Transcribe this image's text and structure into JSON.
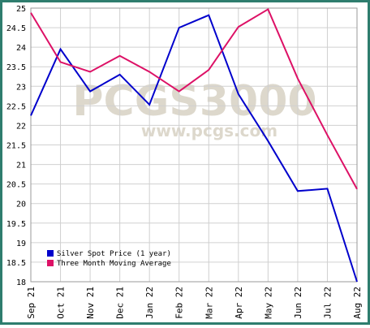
{
  "chart_data": {
    "type": "line",
    "watermark": "PCGS3000",
    "watermark_url": "www.pcgs.com",
    "categories": [
      "Sep 21",
      "Oct 21",
      "Nov 21",
      "Dec 21",
      "Jan 22",
      "Feb 22",
      "Mar 22",
      "Apr 22",
      "May 22",
      "Jun 22",
      "Jul 22",
      "Aug 22"
    ],
    "series": [
      {
        "name": "Silver Spot Price (1 year)",
        "color": "#0000cc",
        "values": [
          22.25,
          23.95,
          22.87,
          23.3,
          22.53,
          24.5,
          24.82,
          22.8,
          21.6,
          20.32,
          20.38,
          18.0
        ]
      },
      {
        "name": "Three Month Moving Average",
        "color": "#dd1166",
        "values": [
          24.88,
          23.62,
          23.37,
          23.78,
          23.37,
          22.87,
          23.42,
          24.52,
          24.97,
          23.2,
          21.75,
          20.37
        ]
      }
    ],
    "ylim": [
      18,
      25
    ],
    "yticks": [
      18,
      18.5,
      19,
      19.5,
      20,
      20.5,
      21,
      21.5,
      22,
      22.5,
      23,
      23.5,
      24,
      24.5,
      25
    ],
    "grid": true,
    "legend": "lower-left"
  }
}
